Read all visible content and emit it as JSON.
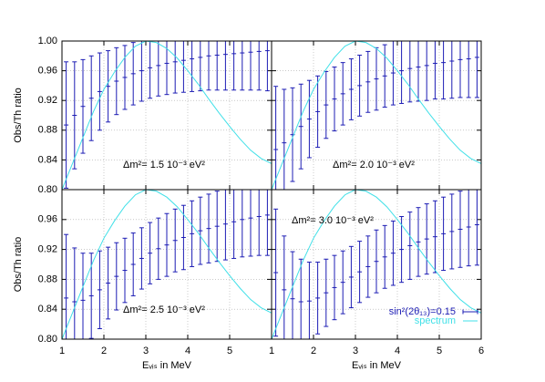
{
  "chart_data": [
    {
      "type": "errorbar",
      "annotation": "Δm²= 1.5 10⁻³ eV²",
      "ylabel": "Obs/Th ratio",
      "xlim": [
        1,
        6
      ],
      "ylim": [
        0.8,
        1.0
      ],
      "yticks": [
        {
          "value": 1.0,
          "label": "1.00"
        },
        0.96,
        0.92,
        0.88,
        0.84,
        {
          "value": 0.8,
          "label": "0.80"
        }
      ],
      "grid": true,
      "x": [
        1.1,
        1.3,
        1.5,
        1.7,
        1.9,
        2.1,
        2.3,
        2.5,
        2.7,
        2.9,
        3.1,
        3.3,
        3.5,
        3.7,
        3.9,
        4.1,
        4.3,
        4.5,
        4.7,
        4.9,
        5.1,
        5.3,
        5.5,
        5.7,
        5.9
      ],
      "series": [
        {
          "color": "#1c1cb4",
          "values": [
            0.887,
            0.9,
            0.912,
            0.923,
            0.932,
            0.939,
            0.946,
            0.951,
            0.956,
            0.96,
            0.964,
            0.967,
            0.97,
            0.972,
            0.974,
            0.976,
            0.978,
            0.98,
            0.981,
            0.982,
            0.983,
            0.984,
            0.985,
            0.986,
            0.987
          ],
          "errors": [
            0.085,
            0.072,
            0.063,
            0.057,
            0.052,
            0.048,
            0.045,
            0.043,
            0.042,
            0.041,
            0.041,
            0.041,
            0.042,
            0.042,
            0.043,
            0.044,
            0.045,
            0.046,
            0.047,
            0.048,
            0.049,
            0.05,
            0.051,
            0.052,
            0.054
          ]
        },
        {
          "type": "line",
          "color": "#40e0e8",
          "x": [
            1,
            1.25,
            1.5,
            1.75,
            2,
            2.25,
            2.5,
            2.75,
            3,
            3.25,
            3.5,
            3.75,
            4,
            4.25,
            4.5,
            4.75,
            5,
            5.25,
            5.5,
            5.75,
            6
          ],
          "values": [
            0.8,
            0.835,
            0.87,
            0.905,
            0.935,
            0.958,
            0.978,
            0.993,
            1.0,
            0.998,
            0.99,
            0.977,
            0.96,
            0.942,
            0.922,
            0.903,
            0.885,
            0.868,
            0.853,
            0.842,
            0.835
          ]
        }
      ]
    },
    {
      "type": "errorbar",
      "annotation": "Δm²= 2.0 10⁻³ eV²",
      "xlim": [
        1,
        6
      ],
      "ylim": [
        0.8,
        1.0
      ],
      "grid": true,
      "x": [
        1.1,
        1.3,
        1.5,
        1.7,
        1.9,
        2.1,
        2.3,
        2.5,
        2.7,
        2.9,
        3.1,
        3.3,
        3.5,
        3.7,
        3.9,
        4.1,
        4.3,
        4.5,
        4.7,
        4.9,
        5.1,
        5.3,
        5.5,
        5.7,
        5.9
      ],
      "series": [
        {
          "color": "#1c1cb4",
          "values": [
            0.854,
            0.863,
            0.874,
            0.885,
            0.895,
            0.905,
            0.914,
            0.922,
            0.929,
            0.935,
            0.94,
            0.945,
            0.949,
            0.953,
            0.957,
            0.96,
            0.963,
            0.965,
            0.967,
            0.97,
            0.971,
            0.973,
            0.975,
            0.976,
            0.978
          ],
          "errors": [
            0.085,
            0.072,
            0.063,
            0.057,
            0.052,
            0.048,
            0.045,
            0.043,
            0.042,
            0.041,
            0.041,
            0.041,
            0.042,
            0.042,
            0.043,
            0.044,
            0.045,
            0.046,
            0.047,
            0.048,
            0.049,
            0.05,
            0.051,
            0.052,
            0.054
          ]
        },
        {
          "type": "line",
          "color": "#40e0e8",
          "x": [
            1,
            1.25,
            1.5,
            1.75,
            2,
            2.25,
            2.5,
            2.75,
            3,
            3.25,
            3.5,
            3.75,
            4,
            4.25,
            4.5,
            4.75,
            5,
            5.25,
            5.5,
            5.75,
            6
          ],
          "values": [
            0.8,
            0.835,
            0.87,
            0.905,
            0.935,
            0.958,
            0.978,
            0.993,
            1.0,
            0.998,
            0.99,
            0.977,
            0.96,
            0.942,
            0.922,
            0.903,
            0.885,
            0.868,
            0.853,
            0.842,
            0.835
          ]
        }
      ]
    },
    {
      "type": "errorbar",
      "annotation": "Δm²= 2.5 10⁻³ eV²",
      "ylabel": "Obs/Th ratio",
      "xlabel": "Eᵥᵢₛ in MeV",
      "xlim": [
        1,
        6
      ],
      "ylim": [
        0.8,
        1.0
      ],
      "xticks": [
        1,
        2,
        3,
        4,
        5
      ],
      "yticks": [
        0.96,
        0.92,
        0.88,
        0.84,
        {
          "value": 0.8,
          "label": "0.80"
        }
      ],
      "grid": true,
      "x": [
        1.1,
        1.3,
        1.5,
        1.7,
        1.9,
        2.1,
        2.3,
        2.5,
        2.7,
        2.9,
        3.1,
        3.3,
        3.5,
        3.7,
        3.9,
        4.1,
        4.3,
        4.5,
        4.7,
        4.9,
        5.1,
        5.3,
        5.5,
        5.7,
        5.9
      ],
      "series": [
        {
          "color": "#1c1cb4",
          "values": [
            0.855,
            0.85,
            0.852,
            0.858,
            0.866,
            0.875,
            0.884,
            0.892,
            0.9,
            0.908,
            0.915,
            0.921,
            0.926,
            0.932,
            0.936,
            0.941,
            0.945,
            0.948,
            0.951,
            0.954,
            0.957,
            0.96,
            0.962,
            0.964,
            0.966
          ],
          "errors": [
            0.085,
            0.072,
            0.063,
            0.057,
            0.052,
            0.048,
            0.045,
            0.043,
            0.042,
            0.041,
            0.041,
            0.041,
            0.042,
            0.042,
            0.043,
            0.044,
            0.045,
            0.046,
            0.047,
            0.048,
            0.049,
            0.05,
            0.051,
            0.052,
            0.054
          ]
        },
        {
          "type": "line",
          "color": "#40e0e8",
          "x": [
            1,
            1.25,
            1.5,
            1.75,
            2,
            2.25,
            2.5,
            2.75,
            3,
            3.25,
            3.5,
            3.75,
            4,
            4.25,
            4.5,
            4.75,
            5,
            5.25,
            5.5,
            5.75,
            6
          ],
          "values": [
            0.8,
            0.835,
            0.87,
            0.905,
            0.935,
            0.958,
            0.978,
            0.993,
            1.0,
            0.998,
            0.99,
            0.977,
            0.96,
            0.942,
            0.922,
            0.903,
            0.885,
            0.868,
            0.853,
            0.842,
            0.835
          ]
        }
      ]
    },
    {
      "type": "errorbar",
      "annotation": "Δm²= 3.0 10⁻³ eV²",
      "xlabel": "Eᵥᵢₛ in MeV",
      "xlim": [
        1,
        6
      ],
      "ylim": [
        0.8,
        1.0
      ],
      "xticks": [
        1,
        2,
        3,
        4,
        5,
        6
      ],
      "grid": true,
      "legend": "lower right",
      "x": [
        1.1,
        1.3,
        1.5,
        1.7,
        1.9,
        2.1,
        2.3,
        2.5,
        2.7,
        2.9,
        3.1,
        3.3,
        3.5,
        3.7,
        3.9,
        4.1,
        4.3,
        4.5,
        4.7,
        4.9,
        5.1,
        5.3,
        5.5,
        5.7,
        5.9
      ],
      "series": [
        {
          "name": "sin²(2θ₁₃)=0.15",
          "color": "#1c1cb4",
          "values": [
            0.889,
            0.866,
            0.854,
            0.85,
            0.851,
            0.855,
            0.862,
            0.869,
            0.876,
            0.883,
            0.89,
            0.897,
            0.904,
            0.91,
            0.915,
            0.92,
            0.925,
            0.93,
            0.934,
            0.937,
            0.941,
            0.944,
            0.947,
            0.95,
            0.953
          ],
          "errors": [
            0.085,
            0.072,
            0.063,
            0.057,
            0.052,
            0.048,
            0.045,
            0.043,
            0.042,
            0.041,
            0.041,
            0.041,
            0.042,
            0.042,
            0.043,
            0.044,
            0.045,
            0.046,
            0.047,
            0.048,
            0.049,
            0.05,
            0.051,
            0.052,
            0.054
          ]
        },
        {
          "name": "spectrum",
          "type": "line",
          "color": "#40e0e8",
          "x": [
            1,
            1.25,
            1.5,
            1.75,
            2,
            2.25,
            2.5,
            2.75,
            3,
            3.25,
            3.5,
            3.75,
            4,
            4.25,
            4.5,
            4.75,
            5,
            5.25,
            5.5,
            5.75,
            6
          ],
          "values": [
            0.8,
            0.835,
            0.87,
            0.905,
            0.935,
            0.958,
            0.978,
            0.993,
            1.0,
            0.998,
            0.99,
            0.977,
            0.96,
            0.942,
            0.922,
            0.903,
            0.885,
            0.868,
            0.853,
            0.842,
            0.835
          ]
        }
      ]
    }
  ]
}
